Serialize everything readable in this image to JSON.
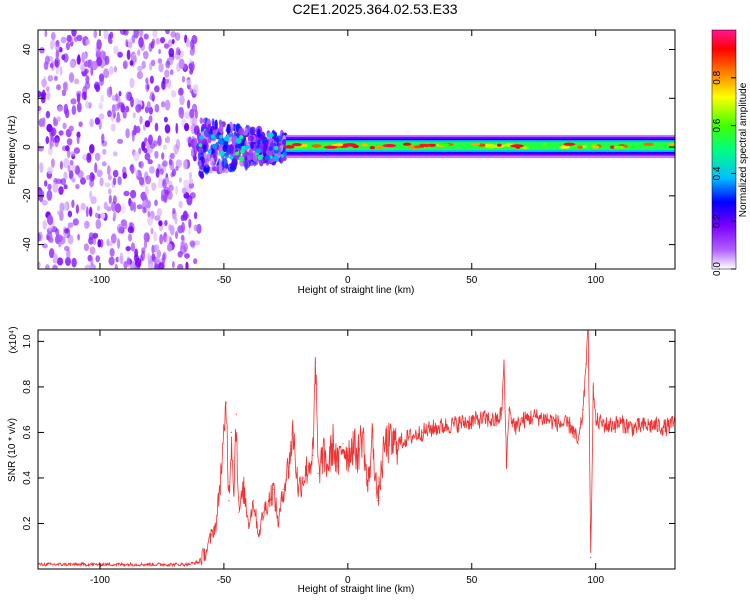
{
  "title": "C2E1.2025.364.02.53.E33",
  "chart_data": [
    {
      "type": "heatmap",
      "xlabel": "Height of straight line (km)",
      "ylabel": "Frequency (Hz)",
      "xlim": [
        -125,
        132
      ],
      "ylim": [
        -50,
        48
      ],
      "xticks": [
        -100,
        -50,
        0,
        50,
        100
      ],
      "yticks": [
        -40,
        -20,
        0,
        20,
        40
      ],
      "colorbar": {
        "label": "Normalized spectral amplitude",
        "range": [
          0.0,
          1.0
        ],
        "ticks": [
          "0.0",
          "0.2",
          "0.4",
          "0.6",
          "0.8"
        ],
        "tick_values": [
          0.0,
          0.2,
          0.4,
          0.6,
          0.8
        ],
        "colors": [
          "#ffffff",
          "#b15fff",
          "#7a00ff",
          "#0000ff",
          "#00bfff",
          "#00ff80",
          "#40ff00",
          "#ffff00",
          "#ff8000",
          "#ff0000",
          "#ff1493"
        ]
      },
      "regions": [
        {
          "x_range": [
            -125,
            -60
          ],
          "freq_range": [
            -50,
            48
          ],
          "amplitude": 0.05,
          "pattern": "scattered noise"
        },
        {
          "x_range": [
            -60,
            -25
          ],
          "freq_range": [
            -12,
            12
          ],
          "amplitude": 0.25,
          "pattern": "turbulent band"
        },
        {
          "x_range": [
            -25,
            132
          ],
          "freq_range": [
            -3,
            4
          ],
          "amplitude": 0.6,
          "pattern": "narrow stable band near 0 Hz"
        }
      ]
    },
    {
      "type": "line",
      "xlabel": "Height of straight line (km)",
      "ylabel": "SNR (10 * v/v)",
      "y_multiplier": "(x10⁴)",
      "xlim": [
        -125,
        132
      ],
      "ylim": [
        0.0,
        1.05
      ],
      "xticks": [
        -100,
        -50,
        0,
        50,
        100
      ],
      "yticks": [
        0.2,
        0.4,
        0.6,
        0.8,
        1.0
      ],
      "ytick_labels": [
        "0.2",
        "0.4",
        "0.6",
        "0.8",
        "1.0"
      ],
      "series_color": "#ee3333",
      "x": [
        -125,
        -110,
        -90,
        -75,
        -65,
        -60,
        -57,
        -55,
        -53,
        -51,
        -50,
        -49,
        -48,
        -47,
        -46,
        -45,
        -44,
        -42,
        -40,
        -38,
        -36,
        -34,
        -32,
        -30,
        -28,
        -26,
        -24,
        -22,
        -20,
        -18,
        -16,
        -14,
        -13,
        -12,
        -10,
        -8,
        -6,
        -4,
        -2,
        0,
        2,
        4,
        6,
        8,
        10,
        12,
        15,
        20,
        25,
        30,
        35,
        40,
        45,
        50,
        55,
        60,
        62,
        63,
        64,
        65,
        66,
        68,
        70,
        75,
        80,
        85,
        90,
        93,
        95,
        96,
        97,
        98,
        99,
        100,
        105,
        110,
        115,
        120,
        125,
        128,
        132
      ],
      "y": [
        0.02,
        0.02,
        0.02,
        0.02,
        0.02,
        0.03,
        0.08,
        0.15,
        0.2,
        0.45,
        0.55,
        0.73,
        0.3,
        0.6,
        0.35,
        0.68,
        0.25,
        0.35,
        0.2,
        0.3,
        0.15,
        0.25,
        0.3,
        0.35,
        0.2,
        0.35,
        0.45,
        0.6,
        0.35,
        0.4,
        0.45,
        0.5,
        0.91,
        0.42,
        0.5,
        0.45,
        0.55,
        0.45,
        0.55,
        0.5,
        0.55,
        0.5,
        0.6,
        0.35,
        0.58,
        0.3,
        0.55,
        0.55,
        0.58,
        0.6,
        0.62,
        0.63,
        0.64,
        0.65,
        0.66,
        0.65,
        0.68,
        0.9,
        0.45,
        0.7,
        0.66,
        0.62,
        0.65,
        0.67,
        0.66,
        0.64,
        0.63,
        0.55,
        0.7,
        0.9,
        1.05,
        0.05,
        0.8,
        0.65,
        0.63,
        0.64,
        0.62,
        0.63,
        0.63,
        0.62,
        0.64
      ]
    }
  ]
}
